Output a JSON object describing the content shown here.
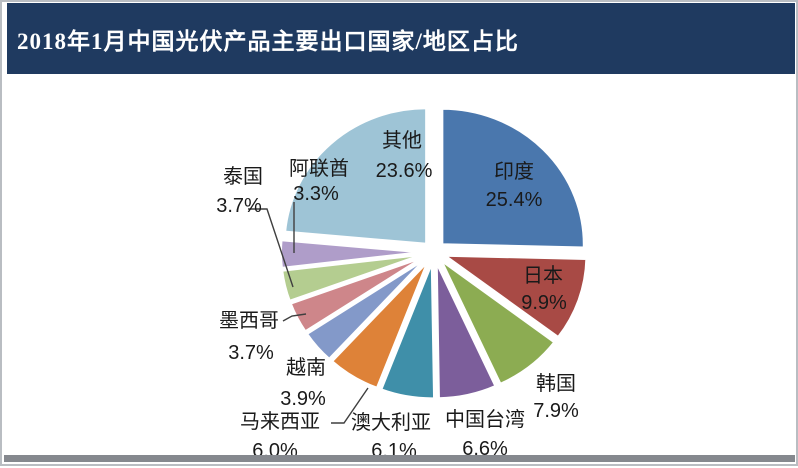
{
  "header": {
    "title": "2018年1月中国光伏产品主要出口国家/地区占比"
  },
  "theme": {
    "header_background": "#1F3A60",
    "header_text_color": "#FFFFFF",
    "chart_background": "#FFFFFF",
    "bottom_bar_color": "#85888E",
    "frame_border_color": "#B9BDC2",
    "label_text_color": "#1A1A1A",
    "slice_gap_color": "#FFFFFF"
  },
  "chart_data": {
    "type": "pie",
    "title": "2018年1月中国光伏产品主要出口国家/地区占比",
    "style": "exploded pie, all slices offset from center, white gaps",
    "legend": "none (direct data labels: category name + percent)",
    "start_angle_deg": 0,
    "direction": "clockwise from 12 o'clock",
    "slices": [
      {
        "label": "印度",
        "value": 25.4,
        "percent_text": "25.4%",
        "color": "#4A77AD"
      },
      {
        "label": "日本",
        "value": 9.9,
        "percent_text": "9.9%",
        "color": "#A84A45"
      },
      {
        "label": "韩国",
        "value": 7.9,
        "percent_text": "7.9%",
        "color": "#8CAC52"
      },
      {
        "label": "中国台湾",
        "value": 6.6,
        "percent_text": "6.6%",
        "color": "#7C5E9B"
      },
      {
        "label": "澳大利亚",
        "value": 6.1,
        "percent_text": "6.1%",
        "color": "#3F8FA9"
      },
      {
        "label": "马来西亚",
        "value": 6.0,
        "percent_text": "6.0%",
        "color": "#DE8238"
      },
      {
        "label": "越南",
        "value": 3.9,
        "percent_text": "3.9%",
        "color": "#8399C9"
      },
      {
        "label": "墨西哥",
        "value": 3.7,
        "percent_text": "3.7%",
        "color": "#CE868A"
      },
      {
        "label": "泰国",
        "value": 3.7,
        "percent_text": "3.7%",
        "color": "#B4CD90"
      },
      {
        "label": "阿联酋",
        "value": 3.3,
        "percent_text": "3.3%",
        "color": "#AF9DC9"
      },
      {
        "label": "其他",
        "value": 23.6,
        "percent_text": "23.6%",
        "color": "#9EC4D6"
      }
    ]
  }
}
